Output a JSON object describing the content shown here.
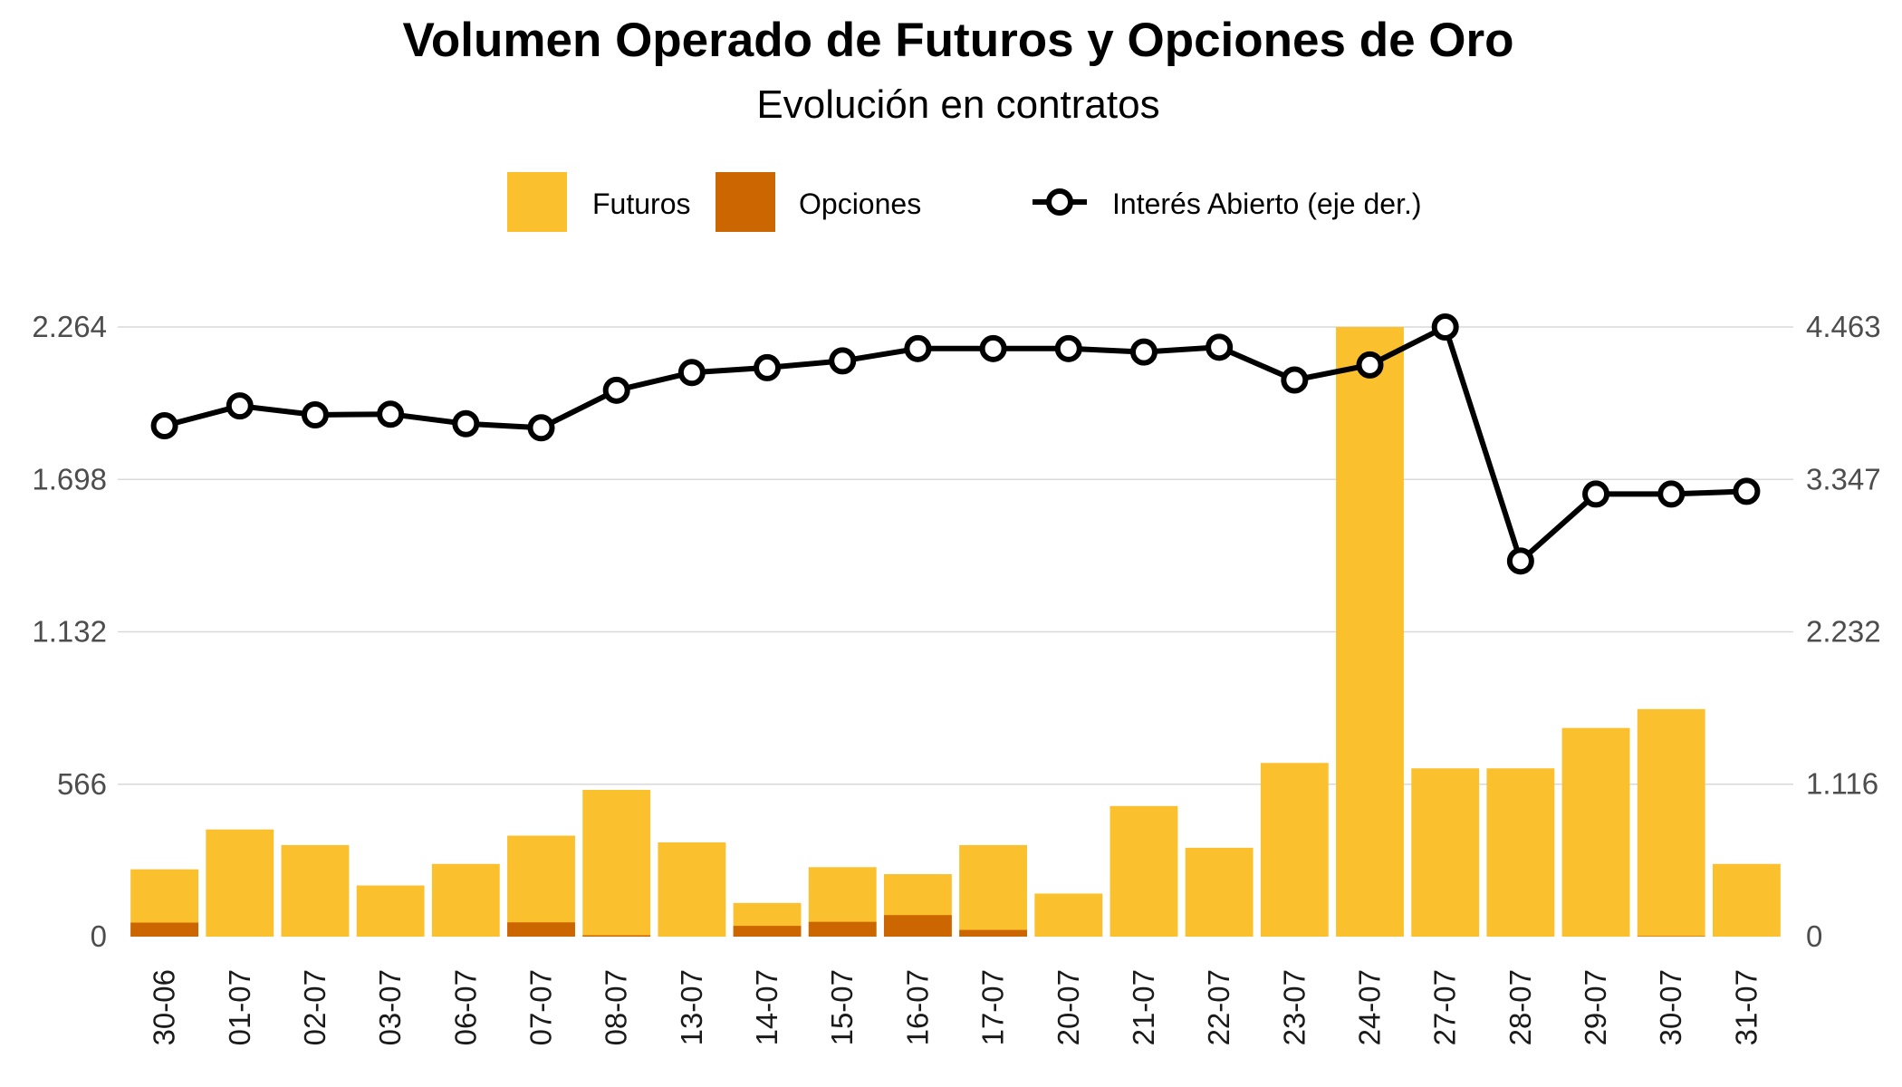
{
  "colors": {
    "futuros": "#FBC02D",
    "opciones": "#CC6600",
    "line": "#000000",
    "marker_fill": "#ffffff",
    "grid": "#d9d9d9",
    "background": "#ffffff"
  },
  "chart_data": {
    "type": "bar",
    "stacked": true,
    "title": "Volumen Operado de Futuros y Opciones de Oro",
    "subtitle": "Evolución en contratos",
    "legend": {
      "placement": "top",
      "items": [
        {
          "label": "Futuros",
          "kind": "bar",
          "color": "#FBC02D"
        },
        {
          "label": "Opciones",
          "kind": "bar",
          "color": "#CC6600"
        },
        {
          "label": "Interés Abierto (eje der.)",
          "kind": "line-marker",
          "color": "#000000"
        }
      ]
    },
    "categories": [
      "30-06",
      "01-07",
      "02-07",
      "03-07",
      "06-07",
      "07-07",
      "08-07",
      "13-07",
      "14-07",
      "15-07",
      "16-07",
      "17-07",
      "20-07",
      "21-07",
      "22-07",
      "23-07",
      "24-07",
      "27-07",
      "28-07",
      "29-07",
      "30-07",
      "31-07"
    ],
    "y_left": {
      "ticks": [
        0,
        566,
        1132,
        1698,
        2264
      ],
      "tick_labels": [
        "0",
        "566",
        "1.132",
        "1.698",
        "2.264"
      ],
      "lim": [
        0,
        2264
      ]
    },
    "y_right": {
      "ticks": [
        0,
        1116,
        2232,
        3347,
        4463
      ],
      "tick_labels": [
        "0",
        "1.116",
        "2.232",
        "3.347",
        "4.463"
      ],
      "lim": [
        0,
        4463
      ]
    },
    "grid": true,
    "series": [
      {
        "name": "Futuros",
        "type": "bar",
        "axis": "left",
        "color": "#FBC02D",
        "values": [
          250,
          398,
          340,
          190,
          270,
          375,
          545,
          350,
          125,
          258,
          232,
          340,
          160,
          485,
          330,
          645,
          2264,
          625,
          625,
          775,
          845,
          270
        ]
      },
      {
        "name": "Opciones",
        "type": "bar",
        "axis": "left",
        "color": "#CC6600",
        "values": [
          52,
          0,
          0,
          0,
          0,
          53,
          5,
          0,
          40,
          55,
          80,
          25,
          0,
          0,
          0,
          0,
          0,
          0,
          0,
          0,
          2,
          0
        ]
      },
      {
        "name": "Interés Abierto (eje der.)",
        "type": "line",
        "axis": "right",
        "color": "#000000",
        "values": [
          3740,
          3885,
          3820,
          3825,
          3755,
          3725,
          4000,
          4130,
          4165,
          4215,
          4305,
          4305,
          4305,
          4280,
          4315,
          4075,
          4185,
          4463,
          2750,
          3240,
          3240,
          3260
        ]
      }
    ]
  }
}
